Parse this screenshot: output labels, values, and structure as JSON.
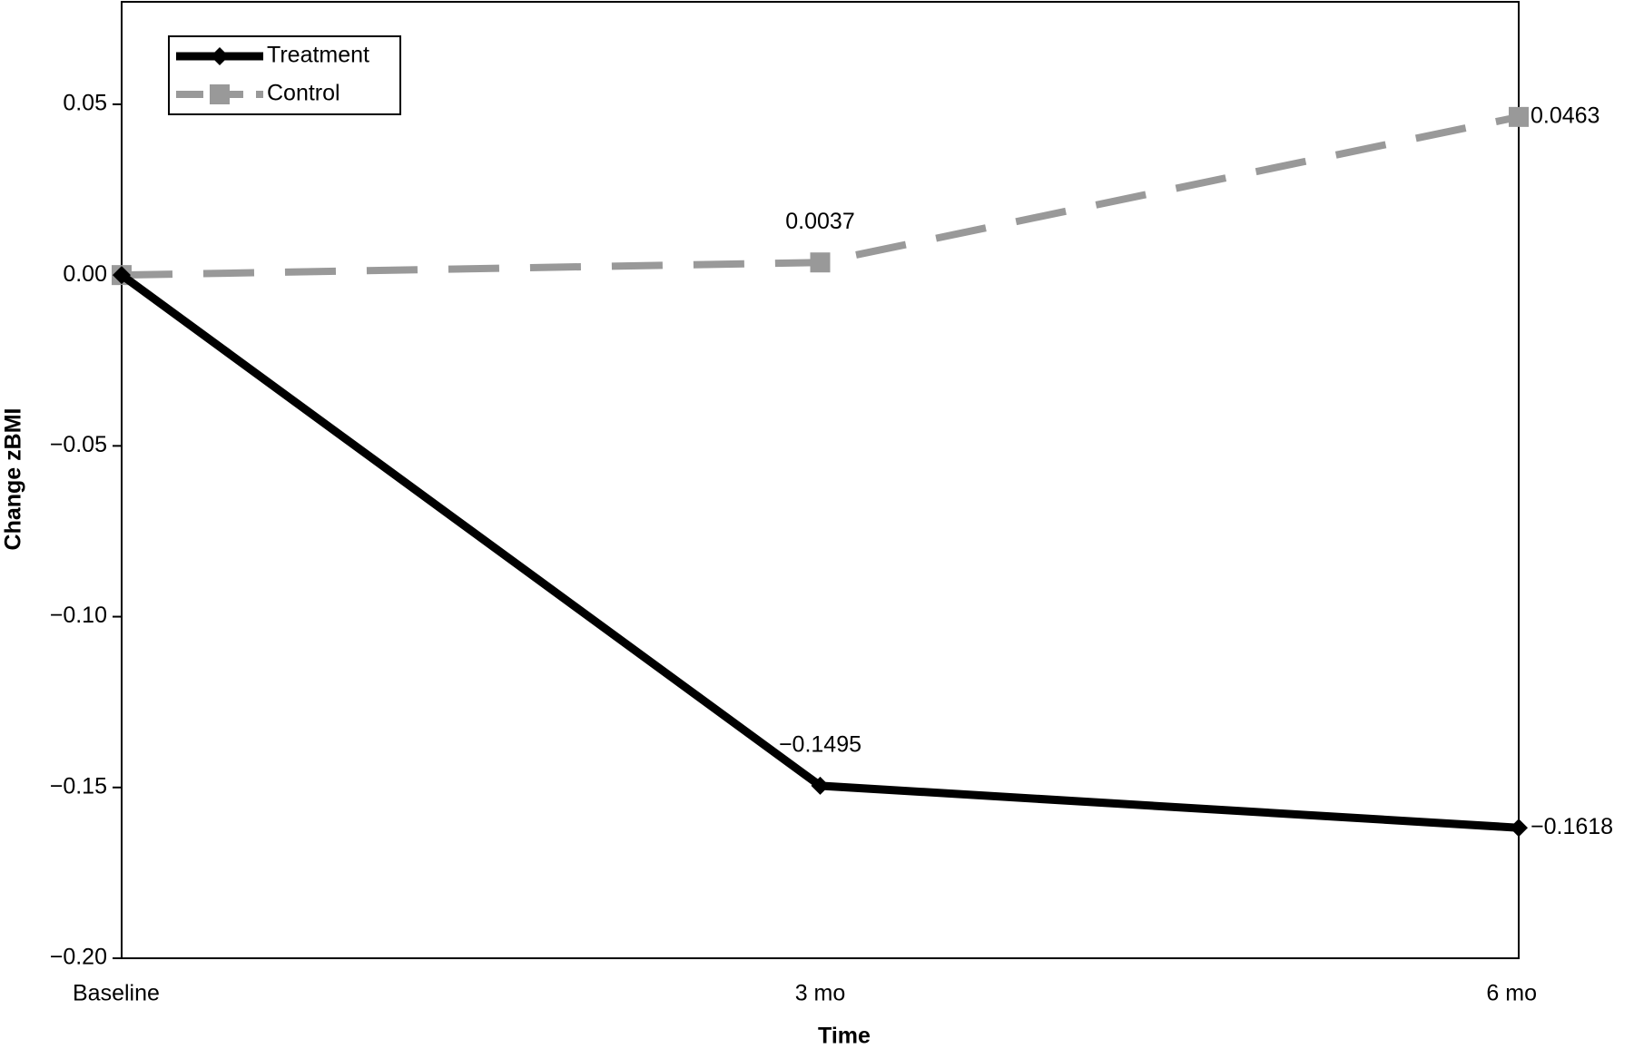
{
  "chart_data": {
    "type": "line",
    "x_label": "Time",
    "y_label": "Change zBMI",
    "categories": [
      "Baseline",
      "3 mo",
      "6 mo"
    ],
    "series": [
      {
        "name": "Treatment",
        "color": "#000000",
        "dashed": false,
        "marker": "diamond",
        "values": [
          0,
          -0.1495,
          -0.1618
        ],
        "value_labels": [
          null,
          "−0.1495",
          "−0.1618"
        ]
      },
      {
        "name": "Control",
        "color": "#999999",
        "dashed": true,
        "marker": "square",
        "values": [
          0,
          0.0037,
          0.0463
        ],
        "value_labels": [
          null,
          "0.0037",
          "0.0463"
        ]
      }
    ],
    "ylim": [
      -0.2,
      0.08
    ],
    "yticks": [
      {
        "value": -0.2,
        "label": "−0.20"
      },
      {
        "value": -0.15,
        "label": "−0.15"
      },
      {
        "value": -0.1,
        "label": "−0.10"
      },
      {
        "value": -0.05,
        "label": "−0.05"
      },
      {
        "value": 0,
        "label": "0.00"
      },
      0.05
    ],
    "grid": false,
    "legend": "upper left"
  }
}
